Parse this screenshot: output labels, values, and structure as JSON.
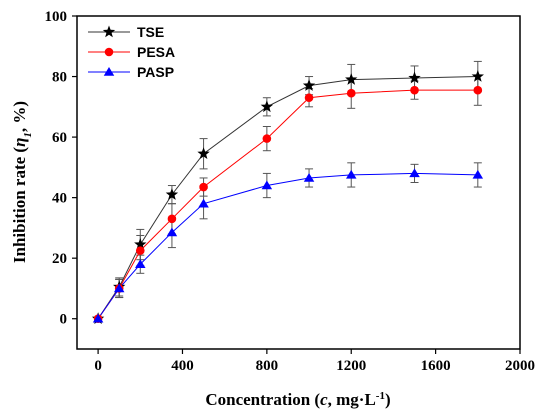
{
  "chart_data": {
    "type": "line",
    "xlabel_parts": [
      "Concentration (",
      "c",
      ", mg·L",
      "-1",
      ")"
    ],
    "ylabel_parts": [
      "Inhibition rate (",
      "η",
      "1",
      ", %)"
    ],
    "xlim": [
      -100,
      2000
    ],
    "ylim": [
      -10,
      100
    ],
    "xticks": [
      0,
      400,
      800,
      1200,
      1600,
      2000
    ],
    "yticks": [
      0,
      20,
      40,
      60,
      80,
      100
    ],
    "x": [
      0,
      100,
      200,
      350,
      500,
      800,
      1000,
      1200,
      1500,
      1800
    ],
    "legend_position": "top-left",
    "grid": false,
    "series": [
      {
        "name": "TSE",
        "color": "#333333",
        "marker": "star",
        "values": [
          0,
          10.5,
          24.5,
          41,
          54.5,
          70,
          77,
          79,
          79.5,
          80
        ],
        "errors": [
          0,
          3,
          5,
          3,
          5,
          3,
          3,
          5,
          4,
          5
        ]
      },
      {
        "name": "PESA",
        "color": "#ff0000",
        "marker": "circle",
        "values": [
          0,
          10,
          22.5,
          33,
          43.5,
          59.5,
          73,
          74.5,
          75.5,
          75.5
        ],
        "errors": [
          0,
          3,
          5,
          5,
          3,
          4,
          3,
          5,
          3,
          5
        ]
      },
      {
        "name": "PASP",
        "color": "#0000ff",
        "marker": "triangle",
        "values": [
          0,
          10,
          18,
          28.5,
          38,
          44,
          46.5,
          47.5,
          48,
          47.5
        ],
        "errors": [
          0,
          3,
          3,
          5,
          5,
          4,
          3,
          4,
          3,
          4
        ]
      }
    ]
  }
}
